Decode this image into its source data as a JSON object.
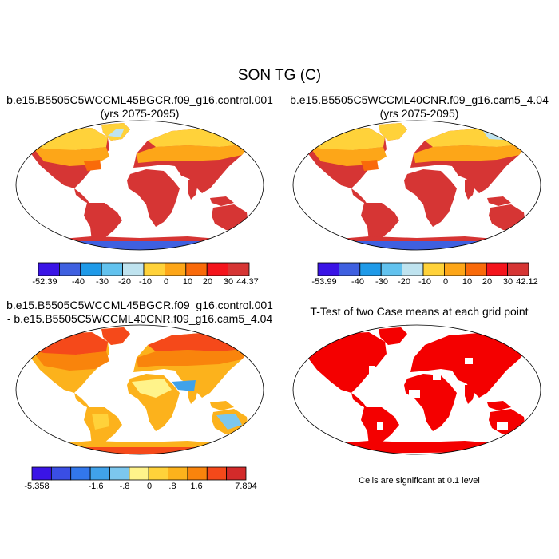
{
  "figure": {
    "title": "SON TG (C)"
  },
  "panels": [
    {
      "title_lines": [
        "b.e15.B5505C5WCCML45BGCR.f09_g16.control.001",
        "(yrs 2075-2095)"
      ],
      "colorbar": {
        "colors": [
          "#3a14e6",
          "#3f60e0",
          "#1f9ae8",
          "#62c2ee",
          "#bfe3ef",
          "#ffd23a",
          "#fda618",
          "#f96a0a",
          "#f4141c",
          "#d63534"
        ],
        "labels": [
          "-52.39",
          "-40",
          "-30",
          "-20",
          "-10",
          "0",
          "10",
          "20",
          "30",
          "44.37"
        ]
      }
    },
    {
      "title_lines": [
        "b.e15.B5505C5WCCML40CNR.f09_g16.cam5_4.04",
        "(yrs 2075-2095)"
      ],
      "colorbar": {
        "colors": [
          "#3a14e6",
          "#3f60e0",
          "#1f9ae8",
          "#62c2ee",
          "#bfe3ef",
          "#ffd23a",
          "#fda618",
          "#f96a0a",
          "#f4141c",
          "#d63534"
        ],
        "labels": [
          "-53.99",
          "-40",
          "-30",
          "-20",
          "-10",
          "0",
          "10",
          "20",
          "30",
          "42.12"
        ]
      }
    },
    {
      "title_lines": [
        "b.e15.B5505C5WCCML45BGCR.f09_g16.control.001",
        "- b.e15.B5505C5WCCML40CNR.f09_g16.cam5_4.04"
      ],
      "colorbar": {
        "colors": [
          "#3a14e6",
          "#3a4ee4",
          "#3277ec",
          "#40a2ea",
          "#7cc7ee",
          "#fff38a",
          "#ffd23a",
          "#fcb21c",
          "#f9840c",
          "#f5491a",
          "#d32a2a"
        ],
        "labels": [
          "-5.358",
          "-1.6",
          "-.8",
          "0",
          ".8",
          "1.6",
          "7.894"
        ]
      }
    },
    {
      "title_lines": [
        "T-Test of two Case means at each grid point"
      ],
      "footnote": "Cells are significant at 0.1 level",
      "colors": {
        "significant": "#f40000"
      }
    }
  ]
}
